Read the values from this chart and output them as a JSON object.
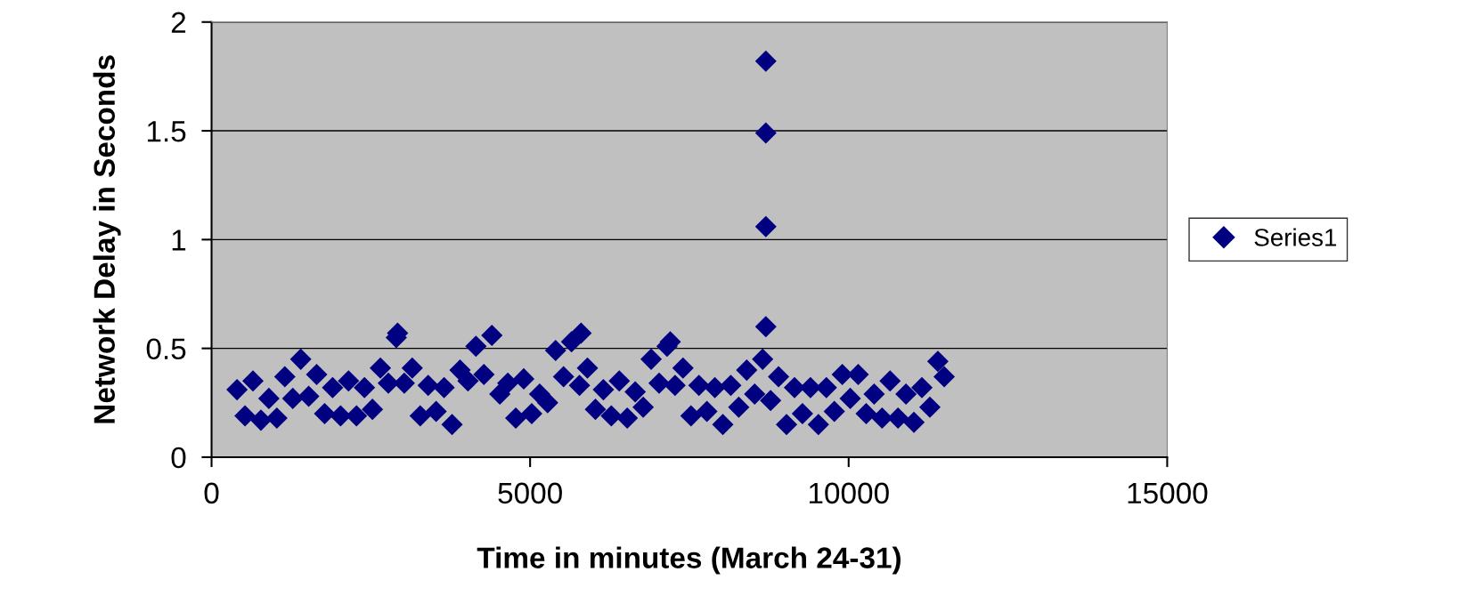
{
  "chart_data": {
    "type": "scatter",
    "xlabel": "Time in minutes (March 24-31)",
    "ylabel": "Network Delay in Seconds",
    "xlim": [
      0,
      15000
    ],
    "xticks": [
      0,
      5000,
      10000,
      15000
    ],
    "ylim": [
      0,
      2
    ],
    "yticks": [
      0,
      0.5,
      1,
      1.5,
      2
    ],
    "grid": "y",
    "legend": "right",
    "marker": "diamond",
    "series": [
      {
        "name": "Series1",
        "color": "#000080",
        "x": [
          400,
          525,
          650,
          775,
          900,
          1025,
          1150,
          1275,
          1400,
          1525,
          1650,
          1775,
          1900,
          2025,
          2150,
          2275,
          2400,
          2525,
          2650,
          2775,
          2900,
          3025,
          3150,
          3275,
          3400,
          3525,
          3650,
          3775,
          3900,
          4025,
          4150,
          4275,
          4400,
          4525,
          4650,
          4775,
          4900,
          5025,
          5150,
          5275,
          5400,
          5525,
          5650,
          5775,
          5900,
          6025,
          6150,
          6275,
          6400,
          6525,
          6650,
          6775,
          6900,
          7025,
          7150,
          7275,
          7400,
          7525,
          7650,
          7775,
          7900,
          8025,
          8150,
          8275,
          8400,
          8525,
          8650,
          8775,
          8900,
          9025,
          9150,
          9275,
          9400,
          9525,
          9650,
          9775,
          9900,
          10025,
          10150,
          10275,
          10400,
          10525,
          10650,
          10775,
          10900,
          11025,
          11150,
          11275,
          11400,
          11500,
          2920,
          5800,
          7200,
          8700,
          8700,
          8700,
          8700
        ],
        "values": [
          0.31,
          0.19,
          0.35,
          0.17,
          0.27,
          0.18,
          0.37,
          0.27,
          0.45,
          0.28,
          0.38,
          0.2,
          0.32,
          0.19,
          0.35,
          0.19,
          0.32,
          0.22,
          0.41,
          0.34,
          0.55,
          0.34,
          0.41,
          0.19,
          0.33,
          0.21,
          0.32,
          0.15,
          0.4,
          0.35,
          0.51,
          0.38,
          0.56,
          0.29,
          0.34,
          0.18,
          0.36,
          0.2,
          0.29,
          0.25,
          0.49,
          0.37,
          0.53,
          0.33,
          0.41,
          0.22,
          0.31,
          0.19,
          0.35,
          0.18,
          0.3,
          0.23,
          0.45,
          0.34,
          0.51,
          0.33,
          0.41,
          0.19,
          0.33,
          0.21,
          0.32,
          0.15,
          0.33,
          0.23,
          0.4,
          0.29,
          0.45,
          0.26,
          0.37,
          0.15,
          0.32,
          0.2,
          0.32,
          0.15,
          0.32,
          0.21,
          0.38,
          0.27,
          0.38,
          0.2,
          0.29,
          0.18,
          0.35,
          0.18,
          0.29,
          0.16,
          0.32,
          0.23,
          0.44,
          0.37,
          0.57,
          0.57,
          0.53,
          0.6,
          1.06,
          1.49,
          1.82
        ]
      }
    ]
  }
}
